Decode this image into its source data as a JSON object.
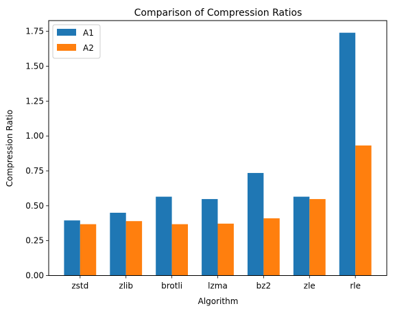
{
  "chart_data": {
    "type": "bar",
    "title": "Comparison of Compression Ratios",
    "xlabel": "Algorithm",
    "ylabel": "Compression Ratio",
    "categories": [
      "zstd",
      "zlib",
      "brotli",
      "lzma",
      "bz2",
      "zle",
      "rle"
    ],
    "series": [
      {
        "name": "A1",
        "color": "#1f77b4",
        "values": [
          0.395,
          0.45,
          0.565,
          0.548,
          0.735,
          0.565,
          1.74
        ]
      },
      {
        "name": "A2",
        "color": "#ff7f0e",
        "values": [
          0.368,
          0.39,
          0.368,
          0.372,
          0.41,
          0.548,
          0.932
        ]
      }
    ],
    "ylim": [
      0,
      1.827
    ],
    "yticks": [
      "0.00",
      "0.25",
      "0.50",
      "0.75",
      "1.00",
      "1.25",
      "1.50",
      "1.75"
    ],
    "grid": false,
    "legend_position": "top-left"
  }
}
